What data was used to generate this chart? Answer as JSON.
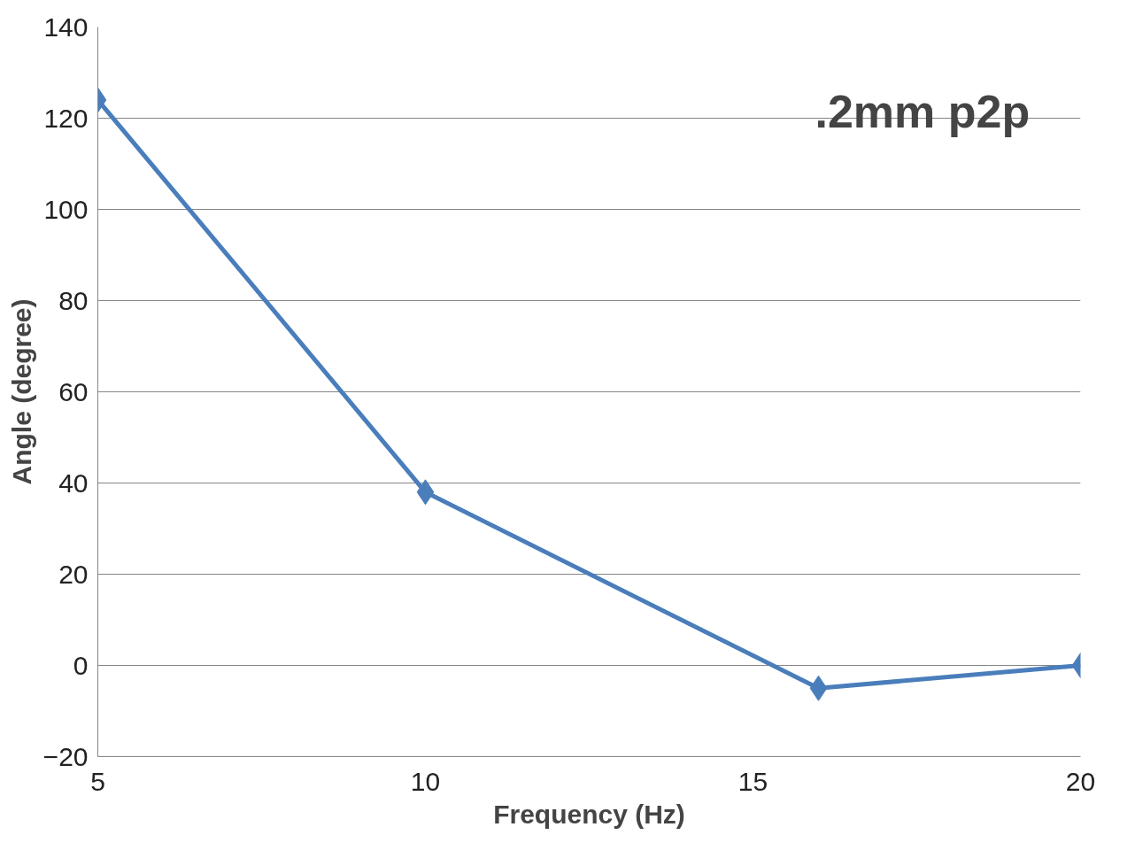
{
  "chart_data": {
    "type": "line",
    "xlabel": "Frequency (Hz)",
    "ylabel": "Angle (degree)",
    "annotations": [
      ".2mm p2p"
    ],
    "x": [
      5,
      10,
      16,
      20
    ],
    "series": [
      {
        "color": "#4a7ebb",
        "values": [
          124,
          38,
          -5,
          0
        ]
      }
    ],
    "xlim": [
      5,
      20
    ],
    "xticks": [
      5,
      10,
      15,
      20
    ],
    "ylim": [
      -20,
      140
    ],
    "yticks": [
      -20,
      0,
      20,
      40,
      60,
      80,
      100,
      120,
      140
    ],
    "grid": "y",
    "marker": "diamond",
    "line_style": "solid"
  }
}
